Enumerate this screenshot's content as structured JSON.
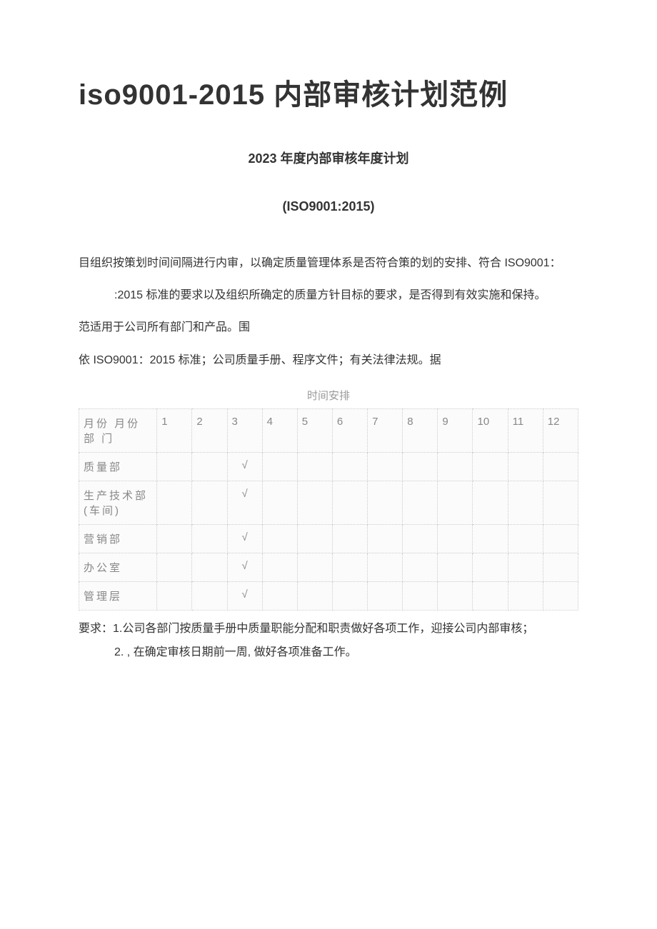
{
  "title": {
    "main": "iso9001-2015 内部审核计划范例",
    "sub": "2023 年度内部审核年度计划",
    "iso": "(ISO9001:2015)"
  },
  "paragraphs": {
    "p1": "目组织按策划时间间隔进行内审，以确定质量管理体系是否符合策的划的安排、符合 ISO9001：",
    "p1_indent": ":2015 标准的要求以及组织所确定的质量方针目标的要求，是否得到有效实施和保持。",
    "p2": "范适用于公司所有部门和产品。围",
    "p3": "依 ISO9001：2015 标准；公司质量手册、程序文件；有关法律法规。据"
  },
  "table": {
    "caption": "时间安排",
    "header_label": "月份 月份\n部 门",
    "months": [
      "1",
      "2",
      "3",
      "4",
      "5",
      "6",
      "7",
      "8",
      "9",
      "10",
      "11",
      "12"
    ],
    "check_symbol": "√",
    "rows": [
      {
        "name": "质量部",
        "marks": [
          "",
          "",
          "√",
          "",
          "",
          "",
          "",
          "",
          "",
          "",
          "",
          ""
        ]
      },
      {
        "name": "生产技术部 (车间)",
        "marks": [
          "",
          "",
          "√",
          "",
          "",
          "",
          "",
          "",
          "",
          "",
          "",
          ""
        ]
      },
      {
        "name": "营销部",
        "marks": [
          "",
          "",
          "√",
          "",
          "",
          "",
          "",
          "",
          "",
          "",
          "",
          ""
        ]
      },
      {
        "name": "办公室",
        "marks": [
          "",
          "",
          "√",
          "",
          "",
          "",
          "",
          "",
          "",
          "",
          "",
          ""
        ]
      },
      {
        "name": "管理层",
        "marks": [
          "",
          "",
          "√",
          "",
          "",
          "",
          "",
          "",
          "",
          "",
          "",
          ""
        ]
      }
    ]
  },
  "requirements": {
    "line1": "要求：1.公司各部门按质量手册中质量职能分配和职责做好各项工作，迎接公司内部审核；",
    "line2": "2. , 在确定审核日期前一周, 做好各项准备工作。"
  },
  "styles": {
    "background_color": "#ffffff",
    "text_color": "#333333",
    "table_text_color": "#888888",
    "caption_color": "#999999",
    "border_color": "#cccccc",
    "cell_bg": "#fbfbfb",
    "main_title_fontsize": 40,
    "sub_title_fontsize": 18,
    "body_fontsize": 16,
    "table_fontsize": 15
  }
}
